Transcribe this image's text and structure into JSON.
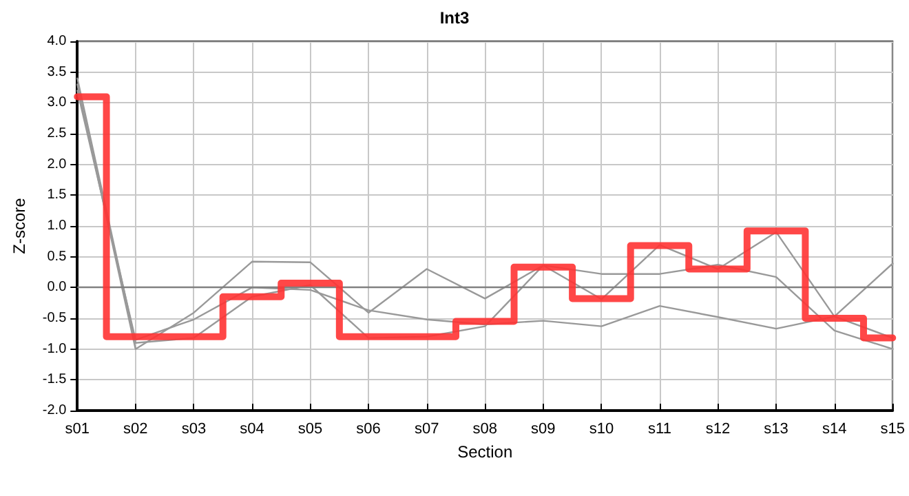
{
  "chart_data": {
    "type": "line",
    "title": "Int3",
    "xlabel": "Section",
    "ylabel": "Z-score",
    "categories": [
      "s01",
      "s02",
      "s03",
      "s04",
      "s05",
      "s06",
      "s07",
      "s08",
      "s09",
      "s10",
      "s11",
      "s12",
      "s13",
      "s14",
      "s15"
    ],
    "series": [
      {
        "color": "#999999",
        "values": [
          3.4,
          -0.9,
          -0.82,
          -0.15,
          0.04,
          -0.82,
          -0.8,
          -0.63,
          0.36,
          -0.19,
          0.69,
          0.3,
          0.9,
          -0.47,
          0.39
        ]
      },
      {
        "color": "#999999",
        "values": [
          3.3,
          -1.0,
          -0.41,
          0.42,
          0.41,
          -0.41,
          0.3,
          -0.18,
          0.36,
          0.22,
          0.22,
          0.37,
          0.17,
          -0.7,
          -1.0
        ]
      },
      {
        "color": "#999999",
        "values": [
          3.2,
          -0.85,
          -0.52,
          0.0,
          -0.04,
          -0.37,
          -0.52,
          -0.6,
          -0.54,
          -0.63,
          -0.3,
          -0.48,
          -0.67,
          -0.47,
          -0.82
        ]
      },
      {
        "type": "step",
        "color": "#ff3333",
        "values": [
          3.1,
          -0.8,
          -0.8,
          -0.15,
          0.07,
          -0.8,
          -0.8,
          -0.55,
          0.33,
          -0.18,
          0.68,
          0.3,
          0.92,
          -0.5,
          -0.82
        ]
      }
    ],
    "ylim": [
      -2,
      4
    ],
    "yticks": [
      {
        "value": -2,
        "label": "-2.0"
      },
      {
        "value": -1.5,
        "label": "-1.5"
      },
      {
        "value": -1,
        "label": "-1.0"
      },
      {
        "value": -0.5,
        "label": "-0.5"
      },
      {
        "value": 0,
        "label": "0.0"
      },
      {
        "value": 0.5,
        "label": "0.5"
      },
      {
        "value": 1,
        "label": "1.0"
      },
      {
        "value": 1.5,
        "label": "1.5"
      },
      {
        "value": 2,
        "label": "2.0"
      },
      {
        "value": 2.5,
        "label": "2.5"
      },
      {
        "value": 3,
        "label": "3.0"
      },
      {
        "value": 3.5,
        "label": "3.5"
      },
      {
        "value": 4,
        "label": "4.0"
      }
    ],
    "ref_lines": [
      {
        "axis": "y",
        "value": 0,
        "color": "#808080"
      }
    ],
    "grid": true,
    "marker": "none",
    "line_style": "solid"
  }
}
